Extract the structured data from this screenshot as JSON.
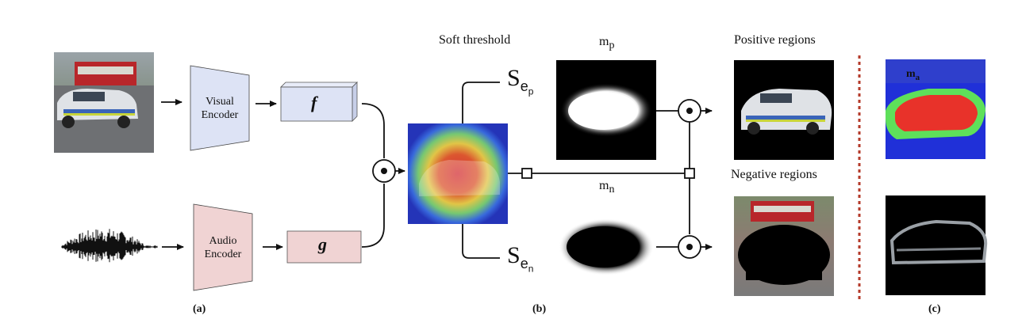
{
  "labels": {
    "soft_threshold": "Soft threshold",
    "mask_positive": "m",
    "mask_positive_sub": "p",
    "mask_negative": "m",
    "mask_negative_sub": "n",
    "positive_regions": "Positive regions",
    "negative_regions": "Negative regions",
    "s_positive": "S",
    "s_positive_sub": "e",
    "s_positive_subsub": "p",
    "s_negative": "S",
    "s_negative_sub": "e",
    "s_negative_subsub": "n",
    "mask_a": "m",
    "mask_a_sub": "a",
    "visual_encoder_line1": "Visual",
    "visual_encoder_line2": "Encoder",
    "audio_encoder_line1": "Audio",
    "audio_encoder_line2": "Encoder",
    "visual_feature": "f",
    "audio_feature": "g"
  },
  "captions": {
    "a": "(a)",
    "b": "(b)",
    "c": "(c)"
  },
  "colors": {
    "visual_encoder_fill": "#dde3f5",
    "audio_encoder_fill": "#f0d3d3",
    "separator": "#b43a2a",
    "heatmap_red": "#e8322a",
    "mask_green": "#5ee05a",
    "mask_blue": "#2030d8"
  }
}
